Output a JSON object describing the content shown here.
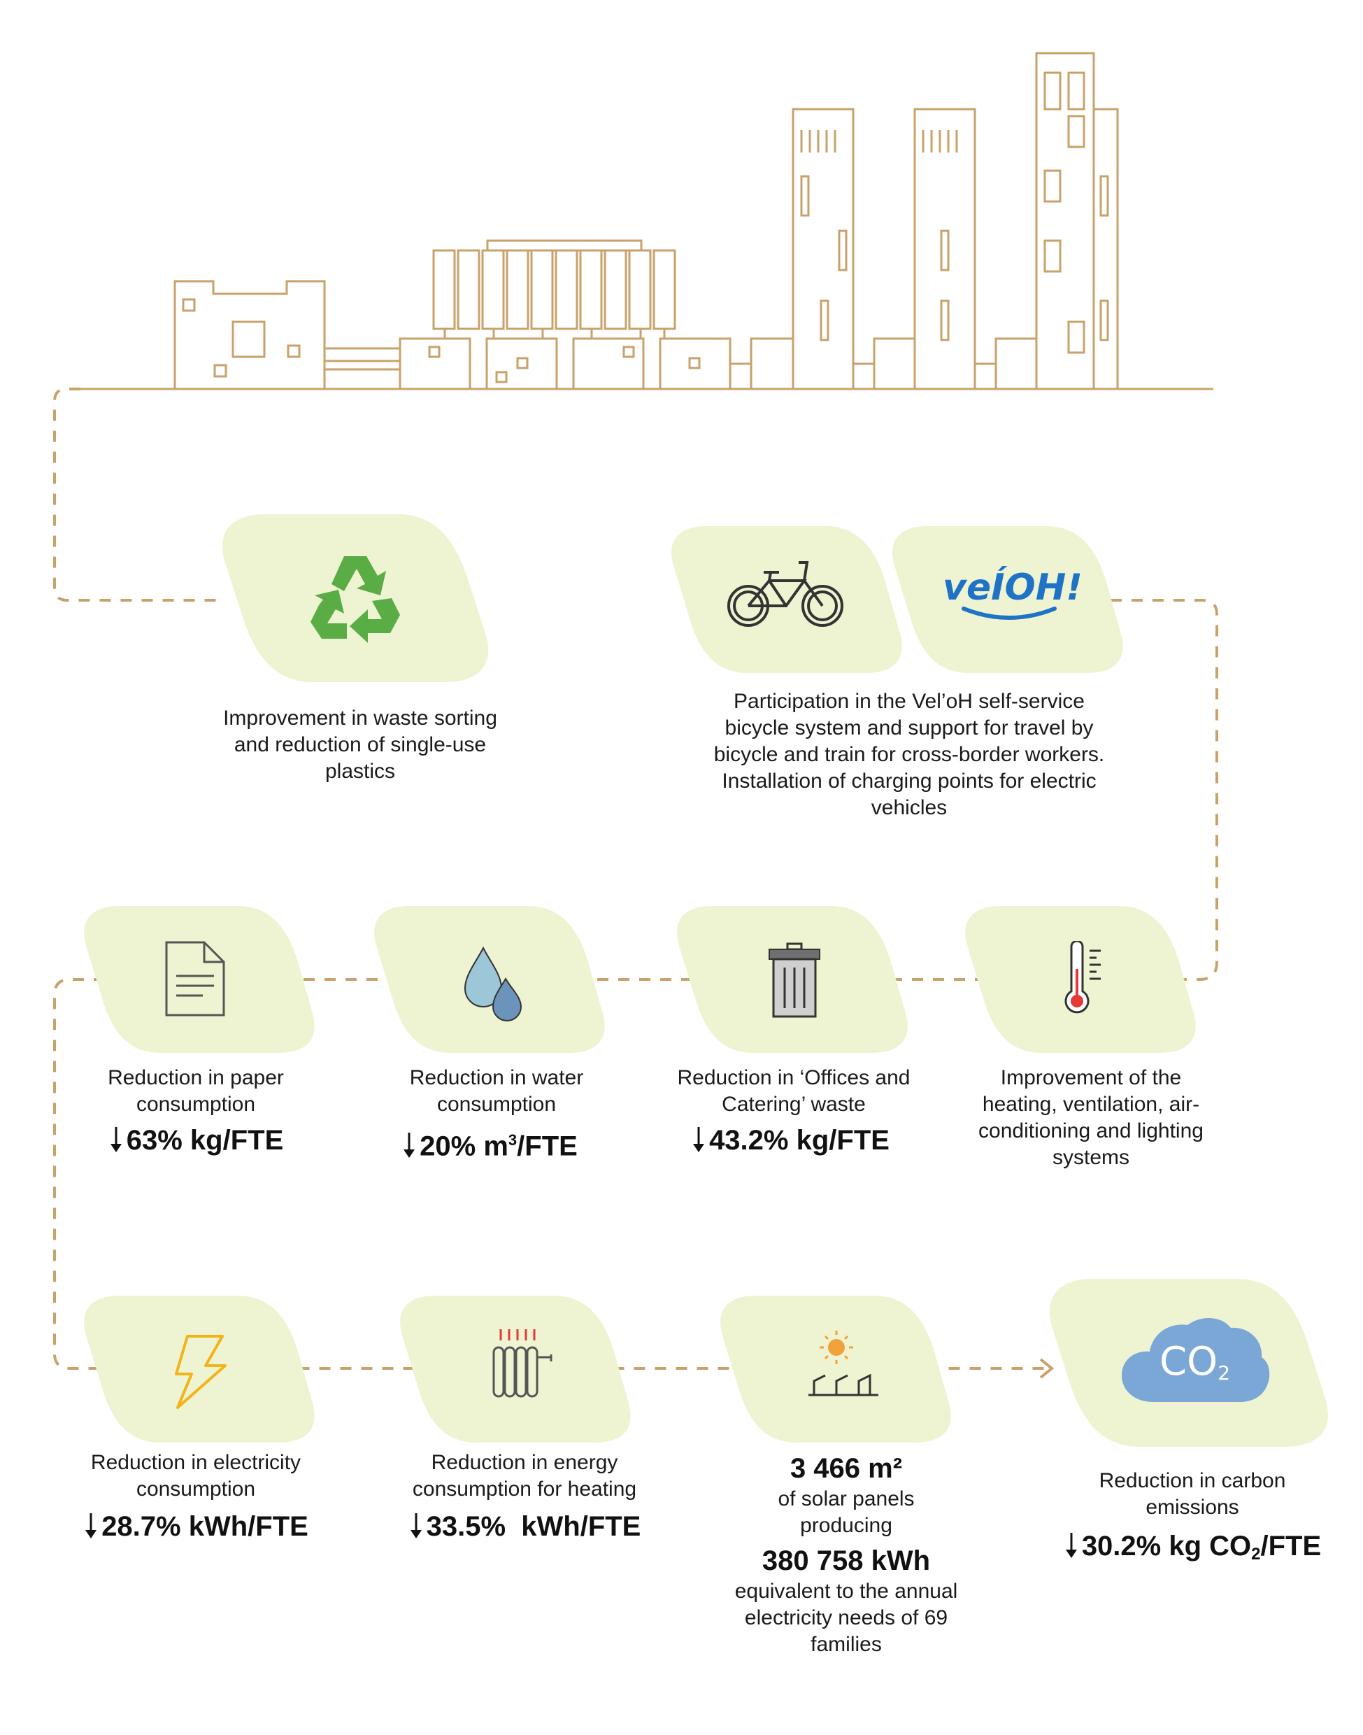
{
  "colors": {
    "line": "#c8a26a",
    "card": "#eef4d1",
    "recycle": "#5aac45",
    "veloh": "#1f73c7",
    "water_light": "#9cc7d8",
    "water_dark": "#6c94bb",
    "bolt": "#f2b31b",
    "co2_cloud": "#7aa7d6",
    "thermo_red": "#e53935"
  },
  "icons": {
    "recycle": "recycle-icon",
    "bicycle": "bicycle-icon",
    "veloh": "veloh-logo",
    "paper": "document-icon",
    "water": "water-drops-icon",
    "trash": "trash-bin-icon",
    "thermometer": "thermometer-icon",
    "bolt": "lightning-icon",
    "radiator": "radiator-icon",
    "solar": "solar-panel-icon",
    "co2": "co2-cloud-icon"
  },
  "veloh_logo_text": "veÍOH!",
  "co2_cloud_text": "CO",
  "co2_cloud_sub": "2",
  "waste": {
    "label": "Improvement in waste sorting and reduction of single-use plastics"
  },
  "mobility": {
    "label": "Participation in the Vel’oH self-service bicycle system and support for travel by bicycle and train for cross-border workers. Installation of charging points for electric vehicles"
  },
  "paper": {
    "label": "Reduction in paper consumption",
    "stat": "63% kg/FTE"
  },
  "water": {
    "label": "Reduction in water consumption",
    "stat_value": "20% m",
    "stat_sup": "3",
    "stat_unit": "/FTE"
  },
  "offices": {
    "label": "Reduction in ‘Offices and Catering’ waste",
    "stat": "43.2% kg/FTE"
  },
  "hvac": {
    "label": "Improvement of the heating, ventilation, air-conditioning and lighting systems"
  },
  "electricity": {
    "label": "Reduction in electricity consumption",
    "stat": "28.7% kWh/FTE"
  },
  "heating": {
    "label": "Reduction in energy consumption for heating",
    "stat": "33.5%  kWh/FTE"
  },
  "solar": {
    "area": "3 466 m²",
    "line1": "of solar panels producing",
    "energy": "380 758 kWh",
    "line2": "equivalent to the annual electricity needs of 69 families"
  },
  "carbon": {
    "label": "Reduction in carbon emissions",
    "stat_value": "30.2% kg CO",
    "stat_sub": "2",
    "stat_unit": "/FTE"
  }
}
